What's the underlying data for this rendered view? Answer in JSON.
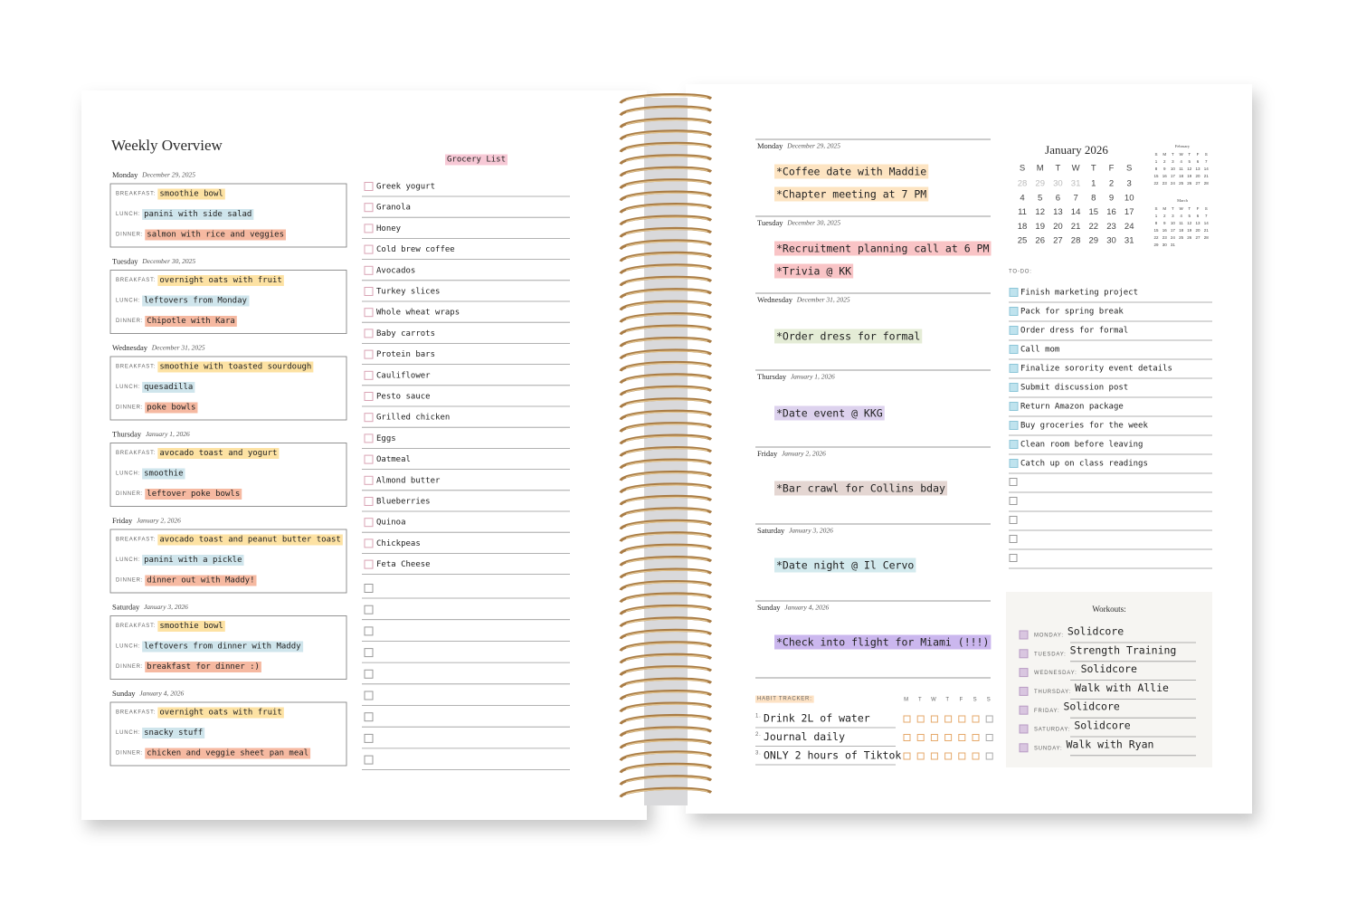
{
  "left": {
    "title": "Weekly Overview",
    "meal_labels": [
      "BREAKFAST:",
      "LUNCH:",
      "DINNER:"
    ],
    "days": [
      {
        "day": "Monday",
        "date": "December 29, 2025",
        "meals": [
          "smoothie bowl",
          "panini with side salad",
          "salmon with rice and veggies"
        ]
      },
      {
        "day": "Tuesday",
        "date": "December 30, 2025",
        "meals": [
          "overnight oats with fruit",
          "leftovers from Monday",
          "Chipotle with Kara"
        ]
      },
      {
        "day": "Wednesday",
        "date": "December 31, 2025",
        "meals": [
          "smoothie with toasted sourdough",
          "quesadilla",
          "poke bowls"
        ]
      },
      {
        "day": "Thursday",
        "date": "January 1, 2026",
        "meals": [
          "avocado toast and yogurt",
          "smoothie",
          "leftover poke bowls"
        ]
      },
      {
        "day": "Friday",
        "date": "January 2, 2026",
        "meals": [
          "avocado toast and peanut butter toast",
          "panini with a pickle",
          "dinner out with Maddy!"
        ]
      },
      {
        "day": "Saturday",
        "date": "January 3, 2026",
        "meals": [
          "smoothie bowl",
          "leftovers from dinner with Maddy",
          "breakfast for dinner :)"
        ]
      },
      {
        "day": "Sunday",
        "date": "January 4, 2026",
        "meals": [
          "overnight oats with fruit",
          "snacky stuff",
          "chicken and veggie sheet pan meal"
        ]
      }
    ],
    "grocery": {
      "title": "Grocery List",
      "items": [
        "Greek yogurt",
        "Granola",
        "Honey",
        "Cold brew coffee",
        "Avocados",
        "Turkey slices",
        "Whole wheat wraps",
        "Baby carrots",
        "Protein bars",
        "Cauliflower",
        "Pesto sauce",
        "Grilled chicken",
        "Eggs",
        "Oatmeal",
        "Almond butter",
        "Blueberries",
        "Quinoa",
        "Chickpeas",
        "Feta Cheese"
      ]
    }
  },
  "right": {
    "days": [
      {
        "day": "Monday",
        "date": "December 29, 2025",
        "events": [
          "*Coffee date with Maddie",
          "*Chapter meeting at 7 PM"
        ]
      },
      {
        "day": "Tuesday",
        "date": "December 30, 2025",
        "events": [
          "*Recruitment planning call at 6 PM",
          "*Trivia @ KK"
        ]
      },
      {
        "day": "Wednesday",
        "date": "December 31, 2025",
        "events": [
          "*Order dress for formal"
        ]
      },
      {
        "day": "Thursday",
        "date": "January 1, 2026",
        "events": [
          "*Date event @ KKG"
        ]
      },
      {
        "day": "Friday",
        "date": "January 2, 2026",
        "events": [
          "*Bar crawl for Collins bday"
        ]
      },
      {
        "day": "Saturday",
        "date": "January 3, 2026",
        "events": [
          "*Date night @ Il Cervo"
        ]
      },
      {
        "day": "Sunday",
        "date": "January 4, 2026",
        "events": [
          "*Check into flight for Miami (!!!)"
        ]
      }
    ],
    "calendar": {
      "title": "January 2026",
      "weekdays": [
        "S",
        "M",
        "T",
        "W",
        "T",
        "F",
        "S"
      ],
      "weeks": [
        [
          28,
          29,
          30,
          31,
          1,
          2,
          3
        ],
        [
          4,
          5,
          6,
          7,
          8,
          9,
          10
        ],
        [
          11,
          12,
          13,
          14,
          15,
          16,
          17
        ],
        [
          18,
          19,
          20,
          21,
          22,
          23,
          24
        ],
        [
          25,
          26,
          27,
          28,
          29,
          30,
          31
        ]
      ]
    },
    "mini_calendars": [
      {
        "title": "February",
        "weekdays": [
          "S",
          "M",
          "T",
          "W",
          "T",
          "F",
          "S"
        ],
        "weeks": [
          [
            1,
            2,
            3,
            4,
            5,
            6,
            7
          ],
          [
            8,
            9,
            10,
            11,
            12,
            13,
            14
          ],
          [
            15,
            16,
            17,
            18,
            19,
            20,
            21
          ],
          [
            22,
            23,
            24,
            25,
            26,
            27,
            28
          ]
        ]
      },
      {
        "title": "March",
        "weekdays": [
          "S",
          "M",
          "T",
          "W",
          "T",
          "F",
          "S"
        ],
        "weeks": [
          [
            1,
            2,
            3,
            4,
            5,
            6,
            7
          ],
          [
            8,
            9,
            10,
            11,
            12,
            13,
            14
          ],
          [
            15,
            16,
            17,
            18,
            19,
            20,
            21
          ],
          [
            22,
            23,
            24,
            25,
            26,
            27,
            28
          ],
          [
            29,
            30,
            31
          ]
        ]
      }
    ],
    "todo": {
      "title": "TO-DO:",
      "items": [
        "Finish marketing project",
        "Pack for spring break",
        "Order dress for formal",
        "Call mom",
        "Finalize sorority event details",
        "Submit discussion post",
        "Return Amazon package",
        "Buy groceries for the week",
        "Clean room before leaving",
        "Catch up on class readings"
      ]
    },
    "habit_tracker": {
      "title": "HABIT TRACKER:",
      "weekdays": [
        "M",
        "T",
        "W",
        "T",
        "F",
        "S",
        "S"
      ],
      "items": [
        {
          "number": "1.",
          "text": "Drink 2L of water"
        },
        {
          "number": "2.",
          "text": "Journal daily"
        },
        {
          "number": "3.",
          "text": "ONLY 2 hours of Tiktok"
        }
      ]
    },
    "workouts": {
      "title": "Workouts:",
      "items": [
        {
          "day": "MONDAY:",
          "text": "Solidcore"
        },
        {
          "day": "TUESDAY:",
          "text": "Strength Training"
        },
        {
          "day": "WEDNESDAY:",
          "text": "Solidcore"
        },
        {
          "day": "THURSDAY:",
          "text": "Walk with Allie"
        },
        {
          "day": "FRIDAY:",
          "text": "Solidcore"
        },
        {
          "day": "SATURDAY:",
          "text": "Solidcore"
        },
        {
          "day": "SUNDAY:",
          "text": "Walk with Ryan"
        }
      ]
    }
  }
}
